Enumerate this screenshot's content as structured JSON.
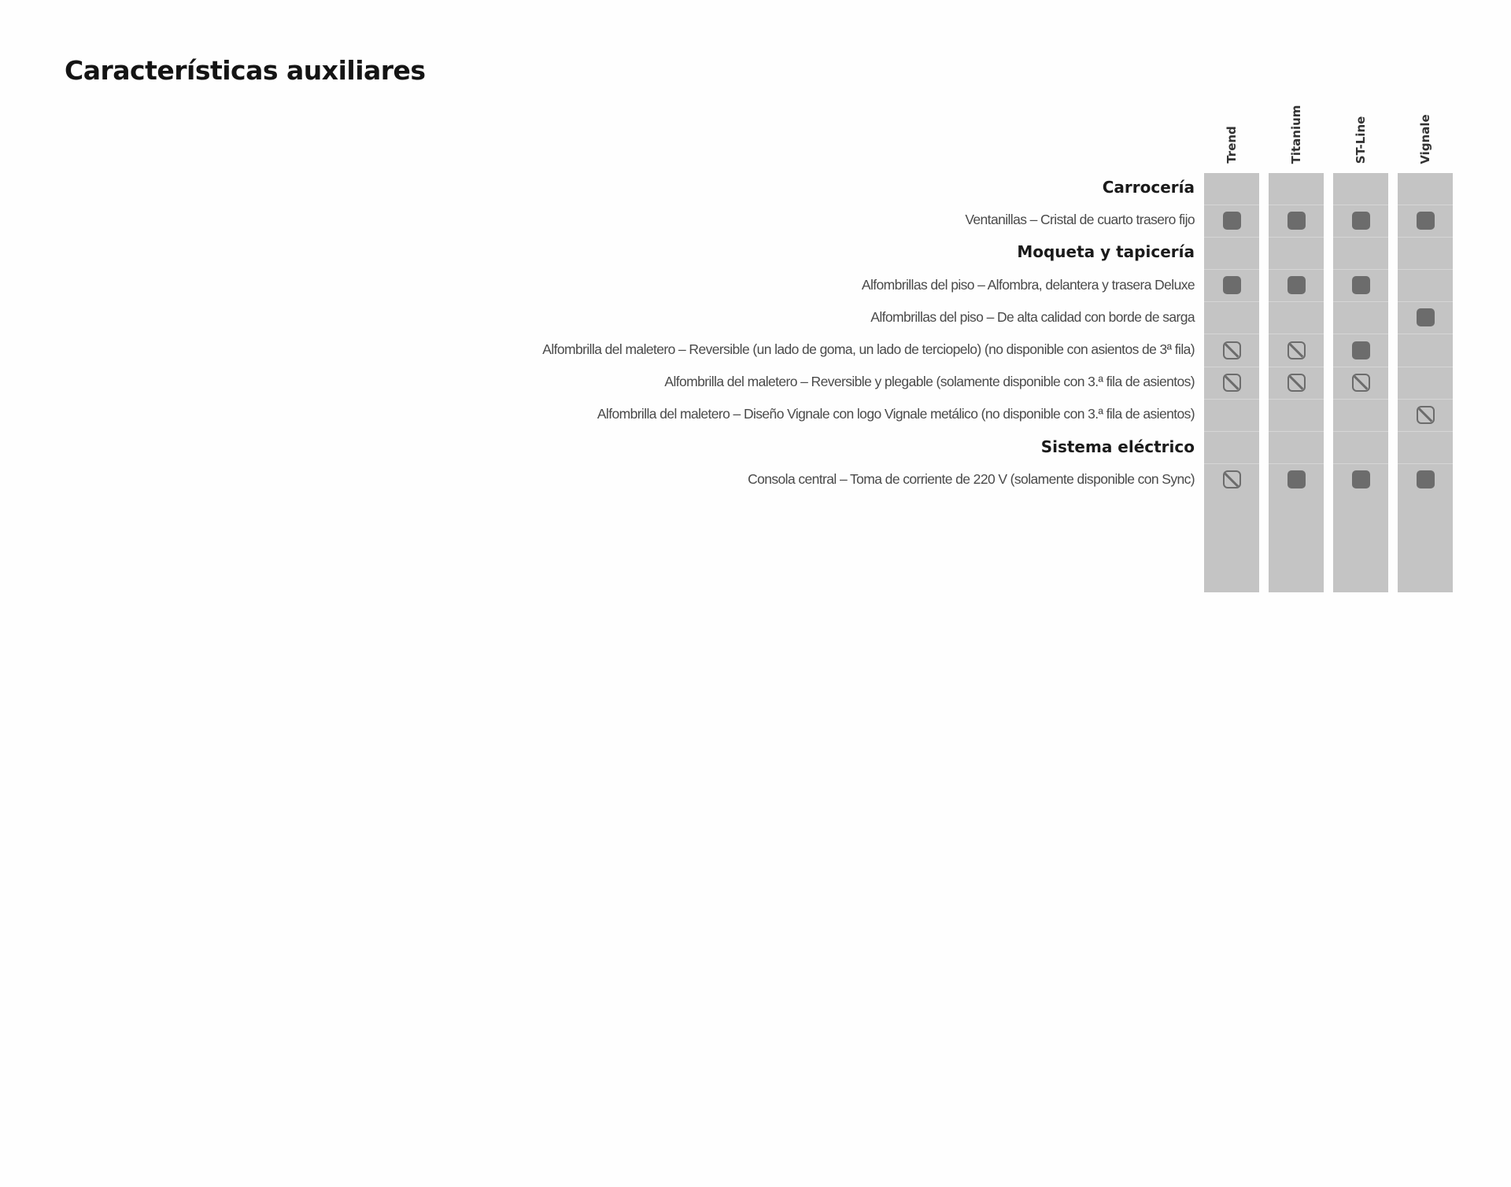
{
  "title": "Características auxiliares",
  "trims": [
    "Trend",
    "Titanium",
    "ST-Line",
    "Vignale"
  ],
  "rows": [
    {
      "type": "section",
      "label": "Carrocería"
    },
    {
      "type": "feature",
      "label": "Ventanillas – Cristal de cuarto trasero fijo",
      "marks": [
        "std",
        "std",
        "std",
        "std"
      ]
    },
    {
      "type": "section",
      "label": "Moqueta y tapicería"
    },
    {
      "type": "feature",
      "label": "Alfombrillas del piso – Alfombra, delantera y trasera Deluxe",
      "marks": [
        "std",
        "std",
        "std",
        ""
      ]
    },
    {
      "type": "feature",
      "label": "Alfombrillas del piso – De alta calidad con borde de sarga",
      "marks": [
        "",
        "",
        "",
        "std"
      ]
    },
    {
      "type": "feature",
      "label": "Alfombrilla del maletero – Reversible (un lado de goma, un lado de terciopelo) (no disponible con asientos de 3ª fila)",
      "marks": [
        "na",
        "na",
        "std",
        ""
      ]
    },
    {
      "type": "feature",
      "label": "Alfombrilla del maletero – Reversible y plegable (solamente disponible con 3.ª fila de asientos)",
      "marks": [
        "na",
        "na",
        "na",
        ""
      ]
    },
    {
      "type": "feature",
      "label": "Alfombrilla del maletero – Diseño Vignale con logo Vignale metálico (no disponible con 3.ª fila de asientos)",
      "marks": [
        "",
        "",
        "",
        "na"
      ]
    },
    {
      "type": "section",
      "label": "Sistema eléctrico"
    },
    {
      "type": "feature",
      "label": "Consola central – Toma de corriente de 220 V (solamente disponible con Sync)",
      "marks": [
        "na",
        "std",
        "std",
        "std"
      ]
    }
  ],
  "mark_legend": {
    "std": "filled-square-icon",
    "na": "crossed-square-icon"
  },
  "colors": {
    "column_background": "#c4c4c4",
    "mark": "#6c6c6c",
    "section_text": "#1a1a1a",
    "feature_text": "#4a4a4a"
  }
}
